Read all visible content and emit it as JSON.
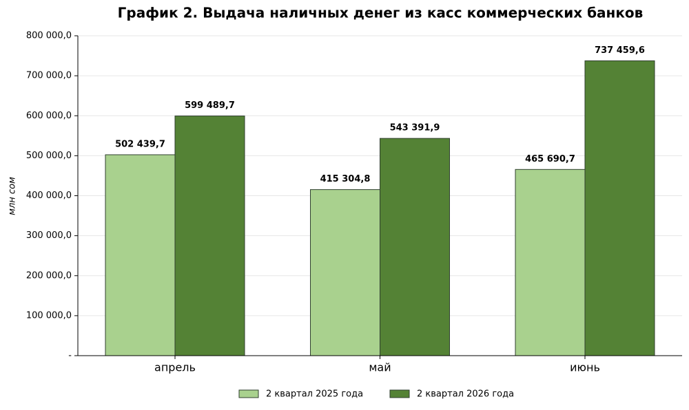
{
  "chart_data": {
    "type": "bar",
    "title": "График 2. Выдача наличных денег из касс коммерческих банков",
    "y_label": "млн сом",
    "categories": [
      "апрель",
      "май",
      "июнь"
    ],
    "series": [
      {
        "name": "2 квартал 2025 года",
        "color": "#a9d18e",
        "values": [
          502439.7,
          415304.8,
          465690.7
        ],
        "value_labels": [
          "502 439,7",
          "415 304,8",
          "465 690,7"
        ]
      },
      {
        "name": "2 квартал 2026 года",
        "color": "#548235",
        "values": [
          599489.7,
          543391.9,
          737459.6
        ],
        "value_labels": [
          "599 489,7",
          "543 391,9",
          "737 459,6"
        ]
      }
    ],
    "ylim": [
      0,
      800000
    ],
    "yticks": [
      {
        "value": 0,
        "label": "-"
      },
      {
        "value": 100000,
        "label": "100 000,0"
      },
      {
        "value": 200000,
        "label": "200 000,0"
      },
      {
        "value": 300000,
        "label": "300 000,0"
      },
      {
        "value": 400000,
        "label": "400 000,0"
      },
      {
        "value": 500000,
        "label": "500 000,0"
      },
      {
        "value": 600000,
        "label": "600 000,0"
      },
      {
        "value": 700000,
        "label": "700 000,0"
      },
      {
        "value": 800000,
        "label": "800 000,0"
      }
    ],
    "grid": true,
    "legend": "bottom"
  }
}
